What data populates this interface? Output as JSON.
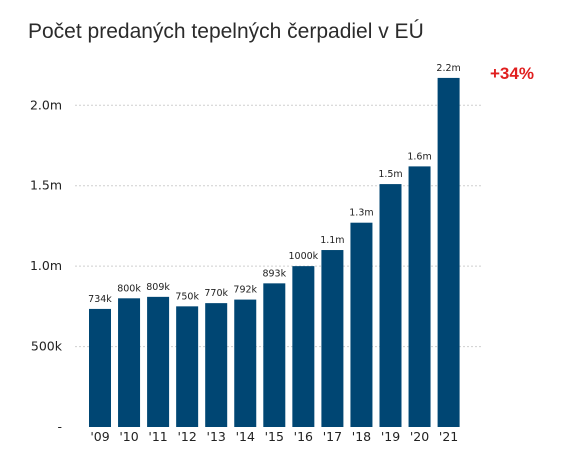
{
  "chart_data": {
    "type": "bar",
    "title": "Počet predaných tepelných čerpadiel v EÚ",
    "xlabel": "",
    "ylabel": "",
    "categories": [
      "'09",
      "'10",
      "'11",
      "'12",
      "'13",
      "'14",
      "'15",
      "'16",
      "'17",
      "'18",
      "'19",
      "'20",
      "'21"
    ],
    "values": [
      734000,
      800000,
      809000,
      750000,
      770000,
      792000,
      893000,
      1000000,
      1100000,
      1270000,
      1510000,
      1620000,
      2170000
    ],
    "data_labels": [
      "734k",
      "800k",
      "809k",
      "750k",
      "770k",
      "792k",
      "893k",
      "1000k",
      "1.1m",
      "1.3m",
      "1.5m",
      "1.6m",
      "2.2m"
    ],
    "ylim": [
      0,
      2300000
    ],
    "yticks": [
      {
        "value": 0,
        "label": "-"
      },
      {
        "value": 500000,
        "label": "500k"
      },
      {
        "value": 1000000,
        "label": "1.0m"
      },
      {
        "value": 1500000,
        "label": "1.5m"
      },
      {
        "value": 2000000,
        "label": "2.0m"
      }
    ],
    "grid": true,
    "annotation": "+34%",
    "colors": {
      "bar": "#004673",
      "grid": "#cfcfcf",
      "annotation": "#e01f1f"
    }
  }
}
